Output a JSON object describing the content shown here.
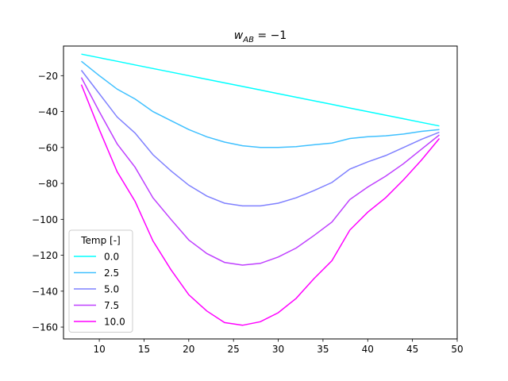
{
  "chart_data": {
    "type": "line",
    "title_main": "w",
    "title_sub": "AB",
    "title_rest": " = −1",
    "xlim": [
      6.0,
      50.0
    ],
    "ylim": [
      -166.6,
      -3.5
    ],
    "x_ticks": [
      10,
      15,
      20,
      25,
      30,
      35,
      40,
      45,
      50
    ],
    "y_ticks": [
      -20,
      -40,
      -60,
      -80,
      -100,
      -120,
      -140,
      -160
    ],
    "grid": false,
    "legend_title": "Temp [-]",
    "legend_position": "lower-left",
    "x": [
      8,
      10,
      12,
      14,
      16,
      18,
      20,
      22,
      24,
      26,
      28,
      30,
      32,
      34,
      36,
      38,
      40,
      42,
      44,
      46,
      48
    ],
    "series": [
      {
        "name": "0.0",
        "color": "#00ffff",
        "values": [
          -8,
          -10,
          -12,
          -14,
          -16,
          -18,
          -20,
          -22,
          -24,
          -26,
          -28,
          -30,
          -32,
          -34,
          -36,
          -38,
          -40,
          -42,
          -44,
          -46,
          -48
        ]
      },
      {
        "name": "2.5",
        "color": "#3fc0ff",
        "values": [
          -12,
          -20,
          -27.5,
          -33,
          -40,
          -45,
          -50,
          -54,
          -57,
          -59,
          -60,
          -60,
          -59.5,
          -58.5,
          -57.5,
          -55,
          -54,
          -53.5,
          -52.5,
          -51,
          -50
        ]
      },
      {
        "name": "5.0",
        "color": "#7f80ff",
        "values": [
          -17,
          -30,
          -43,
          -52,
          -64,
          -73,
          -81,
          -87,
          -91,
          -92.5,
          -92.5,
          -91,
          -88,
          -84,
          -79.5,
          -72,
          -68,
          -64.5,
          -60,
          -55.5,
          -51.5
        ]
      },
      {
        "name": "7.5",
        "color": "#bf40ff",
        "values": [
          -21,
          -40,
          -58,
          -71,
          -88,
          -100,
          -111.5,
          -119,
          -124,
          -125.5,
          -124.5,
          -121,
          -116,
          -109,
          -101.5,
          -89,
          -82,
          -76,
          -69,
          -61,
          -53
        ]
      },
      {
        "name": "10.0",
        "color": "#ff00ff",
        "values": [
          -25,
          -50,
          -73.5,
          -90,
          -112,
          -128,
          -142,
          -151,
          -157.5,
          -159,
          -157,
          -152,
          -144,
          -133,
          -123,
          -106,
          -96,
          -88,
          -78,
          -67,
          -55
        ]
      }
    ]
  }
}
